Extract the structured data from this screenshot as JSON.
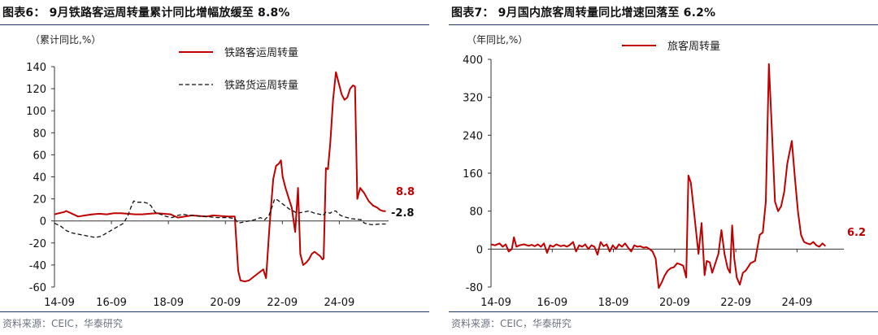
{
  "chart_data": [
    {
      "type": "line",
      "title": "图表6：  9月铁路客运周转量累计同比增幅放缓至 8.8%",
      "ylabel": "（累计同比,%）",
      "ylim": [
        -60,
        140
      ],
      "yticks": [
        "140",
        "120",
        "100",
        "80",
        "60",
        "40",
        "20",
        "0",
        "-20",
        "-40",
        "-60"
      ],
      "xticks": [
        "14-09",
        "16-09",
        "18-09",
        "20-09",
        "22-09",
        "24-09"
      ],
      "legend_position": "top-right",
      "end_labels": [
        "8.8",
        "-2.8"
      ],
      "source": "资料来源：CEIC，华泰研究",
      "series": [
        {
          "name": "铁路客运周转量",
          "color": "#c00000",
          "style": "solid",
          "points": [
            [
              2014.67,
              6
            ],
            [
              2014.83,
              7
            ],
            [
              2015.0,
              8
            ],
            [
              2015.08,
              9
            ],
            [
              2015.25,
              7
            ],
            [
              2015.5,
              4
            ],
            [
              2015.75,
              5
            ],
            [
              2016.0,
              6
            ],
            [
              2016.25,
              6.5
            ],
            [
              2016.5,
              6
            ],
            [
              2016.75,
              7
            ],
            [
              2017.0,
              7
            ],
            [
              2017.25,
              6.5
            ],
            [
              2017.5,
              6
            ],
            [
              2017.75,
              6
            ],
            [
              2018.0,
              6.5
            ],
            [
              2018.25,
              7
            ],
            [
              2018.5,
              6.5
            ],
            [
              2018.75,
              6
            ],
            [
              2019.0,
              3
            ],
            [
              2019.25,
              4
            ],
            [
              2019.5,
              5
            ],
            [
              2019.75,
              4.5
            ],
            [
              2020.0,
              4
            ],
            [
              2020.25,
              5
            ],
            [
              2020.5,
              4.5
            ],
            [
              2020.75,
              4
            ],
            [
              2021.0,
              4
            ],
            [
              2021.12,
              -45
            ],
            [
              2021.2,
              -54
            ],
            [
              2021.35,
              -55
            ],
            [
              2021.5,
              -54
            ],
            [
              2021.7,
              -50
            ],
            [
              2021.9,
              -46
            ],
            [
              2022.0,
              -44
            ],
            [
              2022.1,
              -52
            ],
            [
              2022.22,
              -5
            ],
            [
              2022.35,
              38
            ],
            [
              2022.45,
              50
            ],
            [
              2022.55,
              52
            ],
            [
              2022.62,
              55
            ],
            [
              2022.68,
              40
            ],
            [
              2022.78,
              30
            ],
            [
              2022.9,
              20
            ],
            [
              2023.0,
              12
            ],
            [
              2023.12,
              -10
            ],
            [
              2023.22,
              30
            ],
            [
              2023.3,
              -30
            ],
            [
              2023.4,
              -40
            ],
            [
              2023.5,
              -38
            ],
            [
              2023.6,
              -35
            ],
            [
              2023.7,
              -30
            ],
            [
              2023.8,
              -28
            ],
            [
              2023.9,
              -30
            ],
            [
              2024.0,
              -32
            ],
            [
              2024.08,
              -35
            ],
            [
              2024.12,
              -34
            ],
            [
              2024.2,
              48
            ],
            [
              2024.27,
              47
            ],
            [
              2024.35,
              70
            ],
            [
              2024.45,
              110
            ],
            [
              2024.55,
              135
            ],
            [
              2024.65,
              125
            ],
            [
              2024.75,
              115
            ],
            [
              2024.85,
              110
            ],
            [
              2024.95,
              112
            ],
            [
              2025.05,
              120
            ],
            [
              2025.15,
              123
            ],
            [
              2025.22,
              122
            ],
            [
              2025.3,
              20
            ],
            [
              2025.4,
              30
            ],
            [
              2025.55,
              25
            ],
            [
              2025.7,
              18
            ],
            [
              2025.85,
              14
            ],
            [
              2026.0,
              12
            ],
            [
              2026.1,
              10
            ],
            [
              2026.2,
              9
            ],
            [
              2026.3,
              8.8
            ]
          ]
        },
        {
          "name": "铁路货运周转量",
          "color": "#111111",
          "style": "dashed",
          "points": [
            [
              2014.67,
              -2
            ],
            [
              2014.9,
              -5
            ],
            [
              2015.1,
              -9
            ],
            [
              2015.3,
              -11
            ],
            [
              2015.5,
              -12
            ],
            [
              2015.7,
              -13
            ],
            [
              2015.9,
              -14
            ],
            [
              2016.1,
              -15
            ],
            [
              2016.3,
              -14
            ],
            [
              2016.5,
              -11
            ],
            [
              2016.7,
              -8
            ],
            [
              2016.9,
              -5
            ],
            [
              2017.1,
              -2
            ],
            [
              2017.25,
              5
            ],
            [
              2017.35,
              12
            ],
            [
              2017.45,
              18
            ],
            [
              2017.6,
              17
            ],
            [
              2017.8,
              17
            ],
            [
              2017.95,
              16
            ],
            [
              2018.05,
              14
            ],
            [
              2018.2,
              8
            ],
            [
              2018.4,
              6
            ],
            [
              2018.6,
              4
            ],
            [
              2018.8,
              3
            ],
            [
              2019.0,
              5
            ],
            [
              2019.2,
              6
            ],
            [
              2019.4,
              5
            ],
            [
              2019.6,
              5
            ],
            [
              2019.8,
              4
            ],
            [
              2020.0,
              4
            ],
            [
              2020.2,
              3.5
            ],
            [
              2020.4,
              3
            ],
            [
              2020.6,
              3
            ],
            [
              2020.8,
              3
            ],
            [
              2021.0,
              2
            ],
            [
              2021.12,
              -2
            ],
            [
              2021.3,
              -1
            ],
            [
              2021.5,
              0
            ],
            [
              2021.7,
              1
            ],
            [
              2021.9,
              3
            ],
            [
              2022.05,
              1
            ],
            [
              2022.2,
              5
            ],
            [
              2022.3,
              12
            ],
            [
              2022.4,
              20
            ],
            [
              2022.5,
              19
            ],
            [
              2022.6,
              17
            ],
            [
              2022.75,
              14
            ],
            [
              2022.9,
              11
            ],
            [
              2023.05,
              9
            ],
            [
              2023.2,
              7
            ],
            [
              2023.4,
              8
            ],
            [
              2023.6,
              9
            ],
            [
              2023.8,
              7
            ],
            [
              2024.0,
              6
            ],
            [
              2024.1,
              5
            ],
            [
              2024.2,
              8
            ],
            [
              2024.35,
              7
            ],
            [
              2024.45,
              9
            ],
            [
              2024.55,
              9
            ],
            [
              2024.65,
              6
            ],
            [
              2024.8,
              4
            ],
            [
              2024.95,
              3
            ],
            [
              2025.1,
              2
            ],
            [
              2025.3,
              1.5
            ],
            [
              2025.45,
              1
            ],
            [
              2025.55,
              -2
            ],
            [
              2025.7,
              -3
            ],
            [
              2025.85,
              -3.5
            ],
            [
              2026.0,
              -3
            ],
            [
              2026.15,
              -2.8
            ],
            [
              2026.3,
              -2.8
            ]
          ]
        }
      ]
    },
    {
      "type": "line",
      "title": "图表7：  9月国内旅客周转量同比增速回落至 6.2%",
      "ylabel": "（年同比,%）",
      "ylim": [
        -80,
        400
      ],
      "yticks": [
        "400",
        "320",
        "240",
        "160",
        "80",
        "0",
        "-80"
      ],
      "xticks": [
        "14-09",
        "16-09",
        "18-09",
        "20-09",
        "22-09",
        "24-09"
      ],
      "legend_position": "top-right",
      "end_labels": [
        "6.2"
      ],
      "source": "资料来源：CEIC，华泰研究",
      "series": [
        {
          "name": "旅客周转量",
          "color": "#c00000",
          "style": "solid",
          "points": [
            [
              2014.67,
              10
            ],
            [
              2014.8,
              8
            ],
            [
              2014.95,
              12
            ],
            [
              2015.05,
              5
            ],
            [
              2015.15,
              10
            ],
            [
              2015.25,
              -5
            ],
            [
              2015.35,
              0
            ],
            [
              2015.42,
              25
            ],
            [
              2015.5,
              5
            ],
            [
              2015.6,
              8
            ],
            [
              2015.75,
              10
            ],
            [
              2015.9,
              7
            ],
            [
              2016.0,
              9
            ],
            [
              2016.1,
              6
            ],
            [
              2016.2,
              10
            ],
            [
              2016.3,
              5
            ],
            [
              2016.4,
              12
            ],
            [
              2016.5,
              -8
            ],
            [
              2016.6,
              8
            ],
            [
              2016.7,
              5
            ],
            [
              2016.8,
              10
            ],
            [
              2016.95,
              6
            ],
            [
              2017.05,
              8
            ],
            [
              2017.15,
              5
            ],
            [
              2017.25,
              9
            ],
            [
              2017.35,
              15
            ],
            [
              2017.45,
              -5
            ],
            [
              2017.55,
              8
            ],
            [
              2017.65,
              5
            ],
            [
              2017.75,
              10
            ],
            [
              2017.85,
              0
            ],
            [
              2017.95,
              8
            ],
            [
              2018.05,
              5
            ],
            [
              2018.15,
              -12
            ],
            [
              2018.25,
              15
            ],
            [
              2018.35,
              6
            ],
            [
              2018.45,
              10
            ],
            [
              2018.55,
              -5
            ],
            [
              2018.65,
              8
            ],
            [
              2018.75,
              0
            ],
            [
              2018.85,
              10
            ],
            [
              2018.95,
              5
            ],
            [
              2019.05,
              12
            ],
            [
              2019.15,
              3
            ],
            [
              2019.25,
              -5
            ],
            [
              2019.35,
              8
            ],
            [
              2019.45,
              5
            ],
            [
              2019.55,
              6
            ],
            [
              2019.65,
              3
            ],
            [
              2019.75,
              4
            ],
            [
              2019.85,
              0
            ],
            [
              2019.95,
              -5
            ],
            [
              2020.05,
              -20
            ],
            [
              2020.15,
              -82
            ],
            [
              2020.25,
              -70
            ],
            [
              2020.35,
              -55
            ],
            [
              2020.45,
              -45
            ],
            [
              2020.55,
              -40
            ],
            [
              2020.65,
              -38
            ],
            [
              2020.75,
              -30
            ],
            [
              2020.85,
              -32
            ],
            [
              2020.95,
              -35
            ],
            [
              2021.05,
              -60
            ],
            [
              2021.12,
              155
            ],
            [
              2021.2,
              140
            ],
            [
              2021.3,
              80
            ],
            [
              2021.4,
              20
            ],
            [
              2021.45,
              -10
            ],
            [
              2021.55,
              55
            ],
            [
              2021.65,
              -55
            ],
            [
              2021.72,
              -25
            ],
            [
              2021.82,
              -28
            ],
            [
              2021.9,
              -50
            ],
            [
              2022.0,
              -30
            ],
            [
              2022.1,
              -10
            ],
            [
              2022.2,
              40
            ],
            [
              2022.3,
              -10
            ],
            [
              2022.4,
              -40
            ],
            [
              2022.48,
              -50
            ],
            [
              2022.55,
              50
            ],
            [
              2022.62,
              -20
            ],
            [
              2022.7,
              -60
            ],
            [
              2022.8,
              -75
            ],
            [
              2022.9,
              -50
            ],
            [
              2023.0,
              -45
            ],
            [
              2023.15,
              -30
            ],
            [
              2023.3,
              -25
            ],
            [
              2023.45,
              30
            ],
            [
              2023.55,
              35
            ],
            [
              2023.65,
              100
            ],
            [
              2023.75,
              390
            ],
            [
              2023.85,
              250
            ],
            [
              2023.95,
              100
            ],
            [
              2024.05,
              80
            ],
            [
              2024.15,
              90
            ],
            [
              2024.25,
              120
            ],
            [
              2024.35,
              180
            ],
            [
              2024.5,
              228
            ],
            [
              2024.6,
              150
            ],
            [
              2024.7,
              80
            ],
            [
              2024.8,
              30
            ],
            [
              2024.9,
              15
            ],
            [
              2025.0,
              12
            ],
            [
              2025.1,
              10
            ],
            [
              2025.2,
              15
            ],
            [
              2025.3,
              8
            ],
            [
              2025.4,
              5
            ],
            [
              2025.5,
              12
            ],
            [
              2025.6,
              6.2
            ]
          ]
        }
      ]
    }
  ]
}
